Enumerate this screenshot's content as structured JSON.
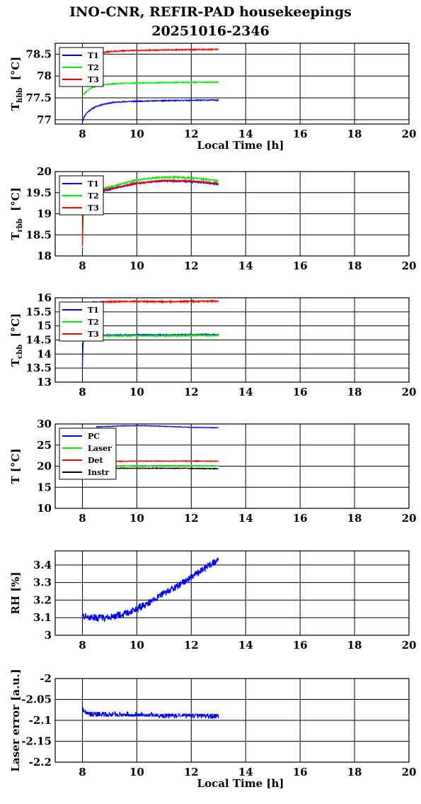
{
  "title_line1": "INO-CNR, REFIR-PAD housekeepings",
  "title_line2": "20251016-2346",
  "chart_data": [
    {
      "id": "t-hbb",
      "type": "line",
      "ylabel": "T",
      "ylabel_sub": "hbb",
      "ylabel_unit": "[°C]",
      "xlabel": "Local Time [h]",
      "xlim": [
        7,
        20
      ],
      "ylim": [
        76.9,
        78.75
      ],
      "yticks": [
        77,
        77.5,
        78,
        78.5
      ],
      "ytick_labels": [
        "77",
        "77.5",
        "78",
        "78.5"
      ],
      "xticks": [
        8,
        10,
        12,
        14,
        16,
        18,
        20
      ],
      "grid": true,
      "legend_position": "top-left",
      "series": [
        {
          "name": "T1",
          "color": "#0000ff",
          "noise": 0.012,
          "seed": 11,
          "points": [
            [
              8.0,
              76.95
            ],
            [
              8.05,
              77.05
            ],
            [
              8.15,
              77.15
            ],
            [
              8.3,
              77.23
            ],
            [
              8.5,
              77.3
            ],
            [
              8.8,
              77.36
            ],
            [
              9.2,
              77.4
            ],
            [
              9.8,
              77.42
            ],
            [
              10.5,
              77.43
            ],
            [
              11.5,
              77.44
            ],
            [
              13.0,
              77.45
            ]
          ]
        },
        {
          "name": "T2",
          "color": "#00ee00",
          "noise": 0.012,
          "seed": 23,
          "points": [
            [
              8.0,
              77.55
            ],
            [
              8.1,
              77.62
            ],
            [
              8.25,
              77.7
            ],
            [
              8.45,
              77.76
            ],
            [
              8.8,
              77.8
            ],
            [
              9.3,
              77.83
            ],
            [
              10.0,
              77.84
            ],
            [
              11.0,
              77.85
            ],
            [
              13.0,
              77.86
            ]
          ]
        },
        {
          "name": "T3",
          "color": "#ff0000",
          "noise": 0.012,
          "seed": 37,
          "points": [
            [
              8.6,
              78.52
            ],
            [
              9.0,
              78.56
            ],
            [
              9.6,
              78.58
            ],
            [
              10.5,
              78.59
            ],
            [
              11.5,
              78.6
            ],
            [
              13.0,
              78.61
            ]
          ]
        }
      ]
    },
    {
      "id": "t-rbb",
      "type": "line",
      "ylabel": "T",
      "ylabel_sub": "rbb",
      "ylabel_unit": "[°C]",
      "xlabel": "",
      "xlim": [
        7,
        20
      ],
      "ylim": [
        18,
        20
      ],
      "yticks": [
        18,
        18.5,
        19,
        19.5,
        20
      ],
      "ytick_labels": [
        "18",
        "18.5",
        "19",
        "19.5",
        "20"
      ],
      "xticks": [
        8,
        10,
        12,
        14,
        16,
        18,
        20
      ],
      "grid": true,
      "legend_position": "top-left",
      "series": [
        {
          "name": "T1",
          "color": "#0000ff",
          "noise": 0.015,
          "seed": 41,
          "points": [
            [
              8.0,
              18.3
            ],
            [
              8.02,
              18.9
            ],
            [
              8.05,
              19.2
            ],
            [
              8.4,
              19.45
            ],
            [
              8.9,
              19.56
            ],
            [
              9.5,
              19.65
            ],
            [
              10.0,
              19.72
            ],
            [
              11.0,
              19.78
            ],
            [
              12.0,
              19.76
            ],
            [
              12.6,
              19.73
            ],
            [
              13.0,
              19.7
            ]
          ]
        },
        {
          "name": "T2",
          "color": "#00ee00",
          "noise": 0.018,
          "seed": 53,
          "points": [
            [
              8.0,
              18.2
            ],
            [
              8.02,
              18.8
            ],
            [
              8.05,
              19.3
            ],
            [
              8.4,
              19.5
            ],
            [
              8.9,
              19.62
            ],
            [
              9.5,
              19.72
            ],
            [
              10.0,
              19.8
            ],
            [
              10.8,
              19.86
            ],
            [
              11.5,
              19.87
            ],
            [
              12.2,
              19.84
            ],
            [
              13.0,
              19.78
            ]
          ]
        },
        {
          "name": "T3",
          "color": "#ff0000",
          "noise": 0.015,
          "seed": 67,
          "points": [
            [
              8.0,
              18.25
            ],
            [
              8.02,
              19.0
            ],
            [
              8.05,
              19.25
            ],
            [
              8.4,
              19.48
            ],
            [
              8.9,
              19.58
            ],
            [
              9.5,
              19.66
            ],
            [
              10.0,
              19.73
            ],
            [
              11.0,
              19.79
            ],
            [
              12.0,
              19.78
            ],
            [
              12.6,
              19.75
            ],
            [
              13.0,
              19.72
            ]
          ]
        }
      ]
    },
    {
      "id": "t-cbb",
      "type": "line",
      "ylabel": "T",
      "ylabel_sub": "cbb",
      "ylabel_unit": "[°C]",
      "xlabel": "",
      "xlim": [
        7,
        20
      ],
      "ylim": [
        13,
        16
      ],
      "yticks": [
        13,
        13.5,
        14,
        14.5,
        15,
        15.5,
        16
      ],
      "ytick_labels": [
        "13",
        "13.5",
        "14",
        "14.5",
        "15",
        "15.5",
        "16"
      ],
      "xticks": [
        8,
        10,
        12,
        14,
        16,
        18,
        20
      ],
      "grid": true,
      "legend_position": "top-left",
      "series": [
        {
          "name": "T1",
          "color": "#0000ff",
          "noise": 0.02,
          "seed": 71,
          "points": [
            [
              8.0,
              13.5
            ],
            [
              8.02,
              14.3
            ],
            [
              8.05,
              14.6
            ],
            [
              8.3,
              14.66
            ],
            [
              9.0,
              14.67
            ],
            [
              10.0,
              14.68
            ],
            [
              11.0,
              14.68
            ],
            [
              12.0,
              14.69
            ],
            [
              13.0,
              14.69
            ]
          ]
        },
        {
          "name": "T2",
          "color": "#00ee00",
          "noise": 0.025,
          "seed": 83,
          "points": [
            [
              8.0,
              14.4
            ],
            [
              8.03,
              14.55
            ],
            [
              8.3,
              14.64
            ],
            [
              9.0,
              14.64
            ],
            [
              10.0,
              14.65
            ],
            [
              11.0,
              14.65
            ],
            [
              12.0,
              14.66
            ],
            [
              13.0,
              14.66
            ]
          ]
        },
        {
          "name": "T3",
          "color": "#ff0000",
          "noise": 0.025,
          "seed": 97,
          "points": [
            [
              8.3,
              15.84
            ],
            [
              9.0,
              15.86
            ],
            [
              10.0,
              15.87
            ],
            [
              11.0,
              15.86
            ],
            [
              12.0,
              15.87
            ],
            [
              13.0,
              15.88
            ]
          ]
        }
      ]
    },
    {
      "id": "t-misc",
      "type": "line",
      "ylabel": "T [°C]",
      "ylabel_sub": "",
      "ylabel_unit": "",
      "xlabel": "",
      "xlim": [
        7,
        20
      ],
      "ylim": [
        10,
        30
      ],
      "yticks": [
        10,
        15,
        20,
        25,
        30
      ],
      "ytick_labels": [
        "10",
        "15",
        "20",
        "25",
        "30"
      ],
      "xticks": [
        8,
        10,
        12,
        14,
        16,
        18,
        20
      ],
      "grid": true,
      "legend_position": "top-left",
      "series": [
        {
          "name": "PC",
          "color": "#0000ff",
          "noise": 0.06,
          "seed": 101,
          "points": [
            [
              8.5,
              29.3
            ],
            [
              9.5,
              29.55
            ],
            [
              10.2,
              29.6
            ],
            [
              11.0,
              29.45
            ],
            [
              12.0,
              29.2
            ],
            [
              13.0,
              29.1
            ]
          ]
        },
        {
          "name": "Laser",
          "color": "#00ee00",
          "noise": 0.08,
          "seed": 113,
          "points": [
            [
              8.5,
              20.0
            ],
            [
              10.0,
              20.1
            ],
            [
              11.5,
              20.1
            ],
            [
              13.0,
              20.05
            ]
          ]
        },
        {
          "name": "Det",
          "color": "#ff0000",
          "noise": 0.08,
          "seed": 127,
          "points": [
            [
              8.5,
              21.1
            ],
            [
              10.0,
              21.2
            ],
            [
              11.5,
              21.2
            ],
            [
              13.0,
              21.2
            ]
          ]
        },
        {
          "name": "Instr",
          "color": "#000000",
          "noise": 0.08,
          "seed": 131,
          "points": [
            [
              8.5,
              19.5
            ],
            [
              10.0,
              19.5
            ],
            [
              11.5,
              19.5
            ],
            [
              13.0,
              19.4
            ]
          ]
        }
      ]
    },
    {
      "id": "rh",
      "type": "line",
      "ylabel": "RH [%]",
      "ylabel_sub": "",
      "ylabel_unit": "",
      "xlabel": "",
      "xlim": [
        7,
        20
      ],
      "ylim": [
        3,
        3.48
      ],
      "yticks": [
        3,
        3.1,
        3.2,
        3.3,
        3.4
      ],
      "ytick_labels": [
        "3",
        "3.1",
        "3.2",
        "3.3",
        "3.4"
      ],
      "xticks": [
        8,
        10,
        12,
        14,
        16,
        18,
        20
      ],
      "grid": true,
      "legend_position": "none",
      "series": [
        {
          "name": "",
          "color": "#0000ff",
          "noise": 0.02,
          "seed": 137,
          "points": [
            [
              8.0,
              3.11
            ],
            [
              8.5,
              3.1
            ],
            [
              9.0,
              3.1
            ],
            [
              9.5,
              3.12
            ],
            [
              10.0,
              3.15
            ],
            [
              10.5,
              3.19
            ],
            [
              11.0,
              3.24
            ],
            [
              11.5,
              3.28
            ],
            [
              12.0,
              3.33
            ],
            [
              12.5,
              3.38
            ],
            [
              13.0,
              3.43
            ]
          ]
        }
      ]
    },
    {
      "id": "laser-error",
      "type": "line",
      "ylabel": "Laser error [a.u.]",
      "ylabel_sub": "",
      "ylabel_unit": "",
      "xlabel": "Local Time [h]",
      "xlim": [
        7,
        20
      ],
      "ylim": [
        -2.2,
        -2.0
      ],
      "yticks": [
        -2.2,
        -2.15,
        -2.1,
        -2.05,
        -2.0
      ],
      "ytick_labels": [
        "-2.2",
        "-2.15",
        "-2.1",
        "-2.05",
        "-2"
      ],
      "xticks": [
        8,
        10,
        12,
        14,
        16,
        18,
        20
      ],
      "grid": true,
      "legend_position": "none",
      "series": [
        {
          "name": "",
          "color": "#0000ff",
          "noise": 0.005,
          "quantum": 0.005,
          "seed": 149,
          "points": [
            [
              7.98,
              -2.07
            ],
            [
              8.05,
              -2.075
            ],
            [
              8.2,
              -2.085
            ],
            [
              13.0,
              -2.09
            ]
          ]
        }
      ]
    }
  ]
}
